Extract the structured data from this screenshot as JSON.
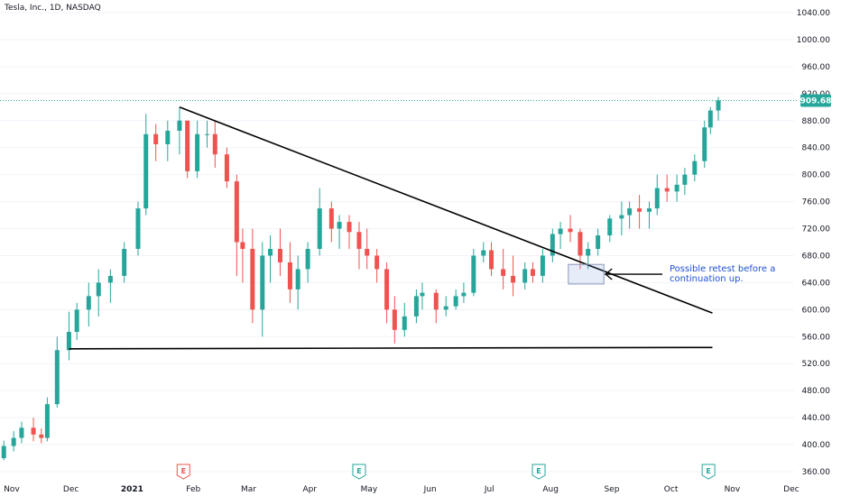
{
  "header": {
    "title": "Tesla, Inc., 1D, NASDAQ"
  },
  "annotation": {
    "text_line1": "Possible retest before a",
    "text_line2": "continuation up."
  },
  "colors": {
    "up": "#26a69a",
    "down": "#ef5350",
    "price_tag": "#26a69a",
    "annotation_text": "#1e4fd8",
    "earnings_down": "#ef5350",
    "earnings_up": "#26a69a"
  },
  "earnings_markers": [
    {
      "label": "E",
      "date": "2021-01-27",
      "direction": "down"
    },
    {
      "label": "E",
      "date": "2021-04-26",
      "direction": "up"
    },
    {
      "label": "E",
      "date": "2021-07-26",
      "direction": "up"
    },
    {
      "label": "E",
      "date": "2021-10-20",
      "direction": "up"
    }
  ],
  "chart_data": {
    "type": "candlestick",
    "title": "Tesla, Inc., 1D, NASDAQ",
    "xlabel": "",
    "ylabel": "",
    "ylim": [
      360,
      1040
    ],
    "y_ticks": [
      "1040.00",
      "1000.00",
      "960.00",
      "920.00",
      "880.00",
      "840.00",
      "800.00",
      "760.00",
      "720.00",
      "680.00",
      "640.00",
      "600.00",
      "560.00",
      "520.00",
      "480.00",
      "440.00",
      "400.00",
      "360.00"
    ],
    "x_ticks": [
      {
        "label": "Nov",
        "date": "2020-11-01"
      },
      {
        "label": "Dec",
        "date": "2020-12-01"
      },
      {
        "label": "2021",
        "date": "2021-01-01",
        "bold": true
      },
      {
        "label": "Feb",
        "date": "2021-02-01"
      },
      {
        "label": "Mar",
        "date": "2021-03-01"
      },
      {
        "label": "Apr",
        "date": "2021-04-01"
      },
      {
        "label": "May",
        "date": "2021-05-01"
      },
      {
        "label": "Jun",
        "date": "2021-06-01"
      },
      {
        "label": "Jul",
        "date": "2021-07-01"
      },
      {
        "label": "Aug",
        "date": "2021-08-01"
      },
      {
        "label": "Sep",
        "date": "2021-09-01"
      },
      {
        "label": "Oct",
        "date": "2021-10-01"
      },
      {
        "label": "Nov",
        "date": "2021-11-01"
      },
      {
        "label": "Dec",
        "date": "2021-12-01"
      }
    ],
    "last_price": {
      "value": 909.68,
      "label": "909.68"
    },
    "trendlines": [
      {
        "name": "descending-resistance",
        "start": {
          "date": "2021-01-25",
          "price": 900
        },
        "end": {
          "date": "2021-10-22",
          "price": 595
        }
      },
      {
        "name": "horizontal-support",
        "start": {
          "date": "2020-11-30",
          "price": 542
        },
        "end": {
          "date": "2021-10-22",
          "price": 544
        }
      }
    ],
    "retest_zone": {
      "date_start": "2021-08-10",
      "date_end": "2021-08-28",
      "price_low": 638,
      "price_high": 667
    },
    "candles": [
      [
        "2020-10-28",
        380,
        406,
        377,
        398
      ],
      [
        "2020-11-02",
        398,
        420,
        390,
        410
      ],
      [
        "2020-11-06",
        410,
        434,
        402,
        425
      ],
      [
        "2020-11-12",
        425,
        440,
        405,
        415
      ],
      [
        "2020-11-16",
        415,
        424,
        402,
        410
      ],
      [
        "2020-11-19",
        410,
        470,
        405,
        460
      ],
      [
        "2020-11-24",
        460,
        560,
        455,
        540
      ],
      [
        "2020-11-30",
        540,
        597,
        525,
        567
      ],
      [
        "2020-12-04",
        567,
        610,
        555,
        600
      ],
      [
        "2020-12-10",
        600,
        640,
        575,
        620
      ],
      [
        "2020-12-15",
        620,
        660,
        590,
        640
      ],
      [
        "2020-12-21",
        640,
        660,
        610,
        650
      ],
      [
        "2020-12-28",
        650,
        700,
        640,
        690
      ],
      [
        "2021-01-04",
        690,
        760,
        680,
        750
      ],
      [
        "2021-01-08",
        750,
        890,
        740,
        860
      ],
      [
        "2021-01-13",
        860,
        875,
        820,
        845
      ],
      [
        "2021-01-19",
        845,
        880,
        820,
        865
      ],
      [
        "2021-01-25",
        865,
        900,
        830,
        880
      ],
      [
        "2021-01-29",
        880,
        880,
        795,
        805
      ],
      [
        "2021-02-03",
        805,
        880,
        795,
        860
      ],
      [
        "2021-02-08",
        860,
        880,
        840,
        860
      ],
      [
        "2021-02-12",
        860,
        880,
        810,
        830
      ],
      [
        "2021-02-18",
        830,
        840,
        780,
        790
      ],
      [
        "2021-02-23",
        790,
        800,
        650,
        700
      ],
      [
        "2021-02-26",
        700,
        720,
        640,
        690
      ],
      [
        "2021-03-03",
        690,
        720,
        580,
        600
      ],
      [
        "2021-03-08",
        600,
        700,
        560,
        680
      ],
      [
        "2021-03-12",
        680,
        710,
        640,
        690
      ],
      [
        "2021-03-17",
        690,
        720,
        650,
        670
      ],
      [
        "2021-03-22",
        670,
        700,
        610,
        630
      ],
      [
        "2021-03-26",
        630,
        680,
        600,
        660
      ],
      [
        "2021-03-31",
        660,
        700,
        640,
        690
      ],
      [
        "2021-04-06",
        690,
        780,
        680,
        750
      ],
      [
        "2021-04-12",
        750,
        760,
        700,
        720
      ],
      [
        "2021-04-16",
        720,
        740,
        690,
        730
      ],
      [
        "2021-04-21",
        730,
        740,
        690,
        715
      ],
      [
        "2021-04-26",
        715,
        730,
        660,
        690
      ],
      [
        "2021-04-30",
        690,
        720,
        660,
        680
      ],
      [
        "2021-05-05",
        680,
        690,
        640,
        660
      ],
      [
        "2021-05-10",
        660,
        670,
        580,
        600
      ],
      [
        "2021-05-14",
        600,
        620,
        550,
        570
      ],
      [
        "2021-05-19",
        570,
        610,
        560,
        590
      ],
      [
        "2021-05-25",
        590,
        630,
        580,
        620
      ],
      [
        "2021-05-28",
        620,
        640,
        600,
        625
      ],
      [
        "2021-06-04",
        625,
        630,
        580,
        600
      ],
      [
        "2021-06-09",
        600,
        620,
        590,
        605
      ],
      [
        "2021-06-14",
        605,
        630,
        600,
        620
      ],
      [
        "2021-06-18",
        620,
        640,
        610,
        625
      ],
      [
        "2021-06-23",
        625,
        690,
        620,
        680
      ],
      [
        "2021-06-28",
        680,
        700,
        670,
        688
      ],
      [
        "2021-07-02",
        688,
        700,
        650,
        660
      ],
      [
        "2021-07-08",
        660,
        690,
        630,
        650
      ],
      [
        "2021-07-13",
        650,
        680,
        620,
        640
      ],
      [
        "2021-07-19",
        640,
        670,
        630,
        660
      ],
      [
        "2021-07-23",
        660,
        670,
        640,
        650
      ],
      [
        "2021-07-28",
        650,
        690,
        640,
        680
      ],
      [
        "2021-08-02",
        680,
        720,
        670,
        712
      ],
      [
        "2021-08-06",
        712,
        730,
        690,
        720
      ],
      [
        "2021-08-11",
        720,
        740,
        700,
        715
      ],
      [
        "2021-08-16",
        715,
        720,
        660,
        680
      ],
      [
        "2021-08-20",
        680,
        700,
        660,
        690
      ],
      [
        "2021-08-25",
        690,
        720,
        680,
        710
      ],
      [
        "2021-08-31",
        710,
        740,
        700,
        735
      ],
      [
        "2021-09-06",
        735,
        760,
        710,
        740
      ],
      [
        "2021-09-10",
        740,
        760,
        720,
        750
      ],
      [
        "2021-09-15",
        750,
        770,
        720,
        745
      ],
      [
        "2021-09-20",
        745,
        760,
        720,
        750
      ],
      [
        "2021-09-24",
        750,
        800,
        740,
        780
      ],
      [
        "2021-09-29",
        780,
        800,
        760,
        775
      ],
      [
        "2021-10-04",
        775,
        800,
        760,
        785
      ],
      [
        "2021-10-08",
        785,
        810,
        770,
        800
      ],
      [
        "2021-10-13",
        800,
        830,
        790,
        820
      ],
      [
        "2021-10-18",
        820,
        880,
        810,
        870
      ],
      [
        "2021-10-21",
        870,
        900,
        860,
        895
      ],
      [
        "2021-10-25",
        895,
        915,
        880,
        910
      ]
    ]
  }
}
